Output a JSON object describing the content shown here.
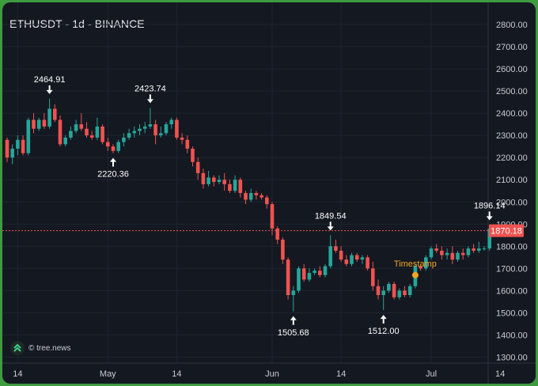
{
  "chart_data": {
    "type": "candlestick",
    "title": "ETHUSDT - 1d - BINANCE",
    "ylim": [
      1300,
      2800
    ],
    "yticks": [
      "2800.00",
      "2700.00",
      "2600.00",
      "2500.00",
      "2400.00",
      "2300.00",
      "2200.00",
      "2100.00",
      "2000.00",
      "1900.00",
      "1800.00",
      "1700.00",
      "1600.00",
      "1500.00",
      "1400.00",
      "1300.00"
    ],
    "xticks": [
      {
        "label": "14",
        "day": 2
      },
      {
        "label": "May",
        "day": 19
      },
      {
        "label": "14",
        "day": 32
      },
      {
        "label": "Jun",
        "day": 50
      },
      {
        "label": "14",
        "day": 63
      },
      {
        "label": "Jul",
        "day": 80
      },
      {
        "label": "14",
        "day": 93
      }
    ],
    "last_price": "1870.18",
    "grid": true,
    "colors": {
      "up": "#26a69a",
      "down": "#ef5350",
      "accent": "#f5a623",
      "background": "#141821"
    },
    "candles": [
      [
        2280,
        2290,
        2180,
        2200
      ],
      [
        2200,
        2260,
        2170,
        2240
      ],
      [
        2240,
        2300,
        2210,
        2280
      ],
      [
        2280,
        2300,
        2210,
        2220
      ],
      [
        2220,
        2380,
        2210,
        2370
      ],
      [
        2370,
        2400,
        2310,
        2330
      ],
      [
        2330,
        2380,
        2320,
        2370
      ],
      [
        2370,
        2400,
        2330,
        2340
      ],
      [
        2340,
        2465,
        2330,
        2420
      ],
      [
        2420,
        2440,
        2360,
        2370
      ],
      [
        2370,
        2390,
        2250,
        2260
      ],
      [
        2260,
        2300,
        2250,
        2290
      ],
      [
        2290,
        2340,
        2280,
        2320
      ],
      [
        2320,
        2370,
        2310,
        2350
      ],
      [
        2350,
        2400,
        2320,
        2330
      ],
      [
        2330,
        2360,
        2290,
        2300
      ],
      [
        2300,
        2320,
        2280,
        2290
      ],
      [
        2290,
        2380,
        2280,
        2340
      ],
      [
        2340,
        2350,
        2260,
        2270
      ],
      [
        2270,
        2290,
        2230,
        2250
      ],
      [
        2250,
        2260,
        2220,
        2230
      ],
      [
        2230,
        2280,
        2220,
        2270
      ],
      [
        2270,
        2310,
        2250,
        2290
      ],
      [
        2290,
        2330,
        2280,
        2310
      ],
      [
        2310,
        2340,
        2290,
        2320
      ],
      [
        2320,
        2350,
        2300,
        2330
      ],
      [
        2330,
        2360,
        2310,
        2340
      ],
      [
        2340,
        2424,
        2330,
        2350
      ],
      [
        2350,
        2370,
        2260,
        2300
      ],
      [
        2300,
        2340,
        2290,
        2310
      ],
      [
        2310,
        2360,
        2300,
        2350
      ],
      [
        2350,
        2380,
        2330,
        2370
      ],
      [
        2370,
        2380,
        2280,
        2290
      ],
      [
        2290,
        2310,
        2260,
        2280
      ],
      [
        2280,
        2300,
        2220,
        2240
      ],
      [
        2240,
        2250,
        2160,
        2180
      ],
      [
        2180,
        2200,
        2100,
        2130
      ],
      [
        2130,
        2150,
        2060,
        2080
      ],
      [
        2080,
        2140,
        2070,
        2110
      ],
      [
        2110,
        2120,
        2070,
        2090
      ],
      [
        2090,
        2120,
        2080,
        2100
      ],
      [
        2100,
        2130,
        2050,
        2080
      ],
      [
        2080,
        2100,
        2040,
        2050
      ],
      [
        2050,
        2120,
        2040,
        2100
      ],
      [
        2100,
        2110,
        2020,
        2040
      ],
      [
        2040,
        2050,
        1990,
        2010
      ],
      [
        2010,
        2060,
        2000,
        2040
      ],
      [
        2040,
        2050,
        2010,
        2030
      ],
      [
        2030,
        2040,
        2010,
        2020
      ],
      [
        2020,
        2030,
        1970,
        1990
      ],
      [
        1990,
        2000,
        1850,
        1880
      ],
      [
        1880,
        1890,
        1810,
        1830
      ],
      [
        1830,
        1840,
        1720,
        1740
      ],
      [
        1740,
        1750,
        1560,
        1580
      ],
      [
        1580,
        1620,
        1506,
        1600
      ],
      [
        1600,
        1710,
        1590,
        1700
      ],
      [
        1700,
        1720,
        1640,
        1650
      ],
      [
        1650,
        1700,
        1640,
        1680
      ],
      [
        1680,
        1700,
        1670,
        1690
      ],
      [
        1690,
        1710,
        1660,
        1670
      ],
      [
        1670,
        1720,
        1660,
        1710
      ],
      [
        1710,
        1850,
        1700,
        1800
      ],
      [
        1800,
        1830,
        1770,
        1780
      ],
      [
        1780,
        1800,
        1730,
        1740
      ],
      [
        1740,
        1760,
        1710,
        1720
      ],
      [
        1720,
        1770,
        1710,
        1760
      ],
      [
        1760,
        1770,
        1730,
        1740
      ],
      [
        1740,
        1760,
        1720,
        1750
      ],
      [
        1750,
        1760,
        1690,
        1700
      ],
      [
        1700,
        1730,
        1600,
        1620
      ],
      [
        1620,
        1650,
        1560,
        1580
      ],
      [
        1580,
        1620,
        1512,
        1600
      ],
      [
        1600,
        1640,
        1590,
        1630
      ],
      [
        1630,
        1640,
        1560,
        1570
      ],
      [
        1570,
        1610,
        1560,
        1600
      ],
      [
        1600,
        1620,
        1570,
        1580
      ],
      [
        1580,
        1630,
        1570,
        1620
      ],
      [
        1620,
        1720,
        1610,
        1710
      ],
      [
        1710,
        1720,
        1690,
        1700
      ],
      [
        1700,
        1760,
        1690,
        1750
      ],
      [
        1750,
        1800,
        1740,
        1790
      ],
      [
        1790,
        1810,
        1770,
        1780
      ],
      [
        1780,
        1800,
        1740,
        1760
      ],
      [
        1760,
        1790,
        1740,
        1770
      ],
      [
        1770,
        1800,
        1720,
        1740
      ],
      [
        1740,
        1780,
        1730,
        1770
      ],
      [
        1770,
        1790,
        1740,
        1760
      ],
      [
        1760,
        1800,
        1750,
        1790
      ],
      [
        1790,
        1810,
        1770,
        1780
      ],
      [
        1780,
        1820,
        1770,
        1790
      ],
      [
        1790,
        1800,
        1780,
        1790
      ],
      [
        1790,
        1896,
        1780,
        1880
      ],
      [
        1880,
        1890,
        1860,
        1870
      ]
    ],
    "annotations": [
      {
        "label": "2464.91",
        "day": 8,
        "price": 2465,
        "pos": "above"
      },
      {
        "label": "2220.36",
        "day": 20,
        "price": 2220,
        "pos": "below"
      },
      {
        "label": "2423.74",
        "day": 27,
        "price": 2424,
        "pos": "above"
      },
      {
        "label": "1505.68",
        "day": 54,
        "price": 1506,
        "pos": "below"
      },
      {
        "label": "1849.54",
        "day": 61,
        "price": 1850,
        "pos": "above"
      },
      {
        "label": "1512.00",
        "day": 71,
        "price": 1512,
        "pos": "below"
      },
      {
        "label": "1896.14",
        "day": 91,
        "price": 1896,
        "pos": "above"
      }
    ],
    "marker": {
      "label": "Timestamp",
      "day": 77,
      "price": 1670
    }
  },
  "watermark": "© tree.news"
}
